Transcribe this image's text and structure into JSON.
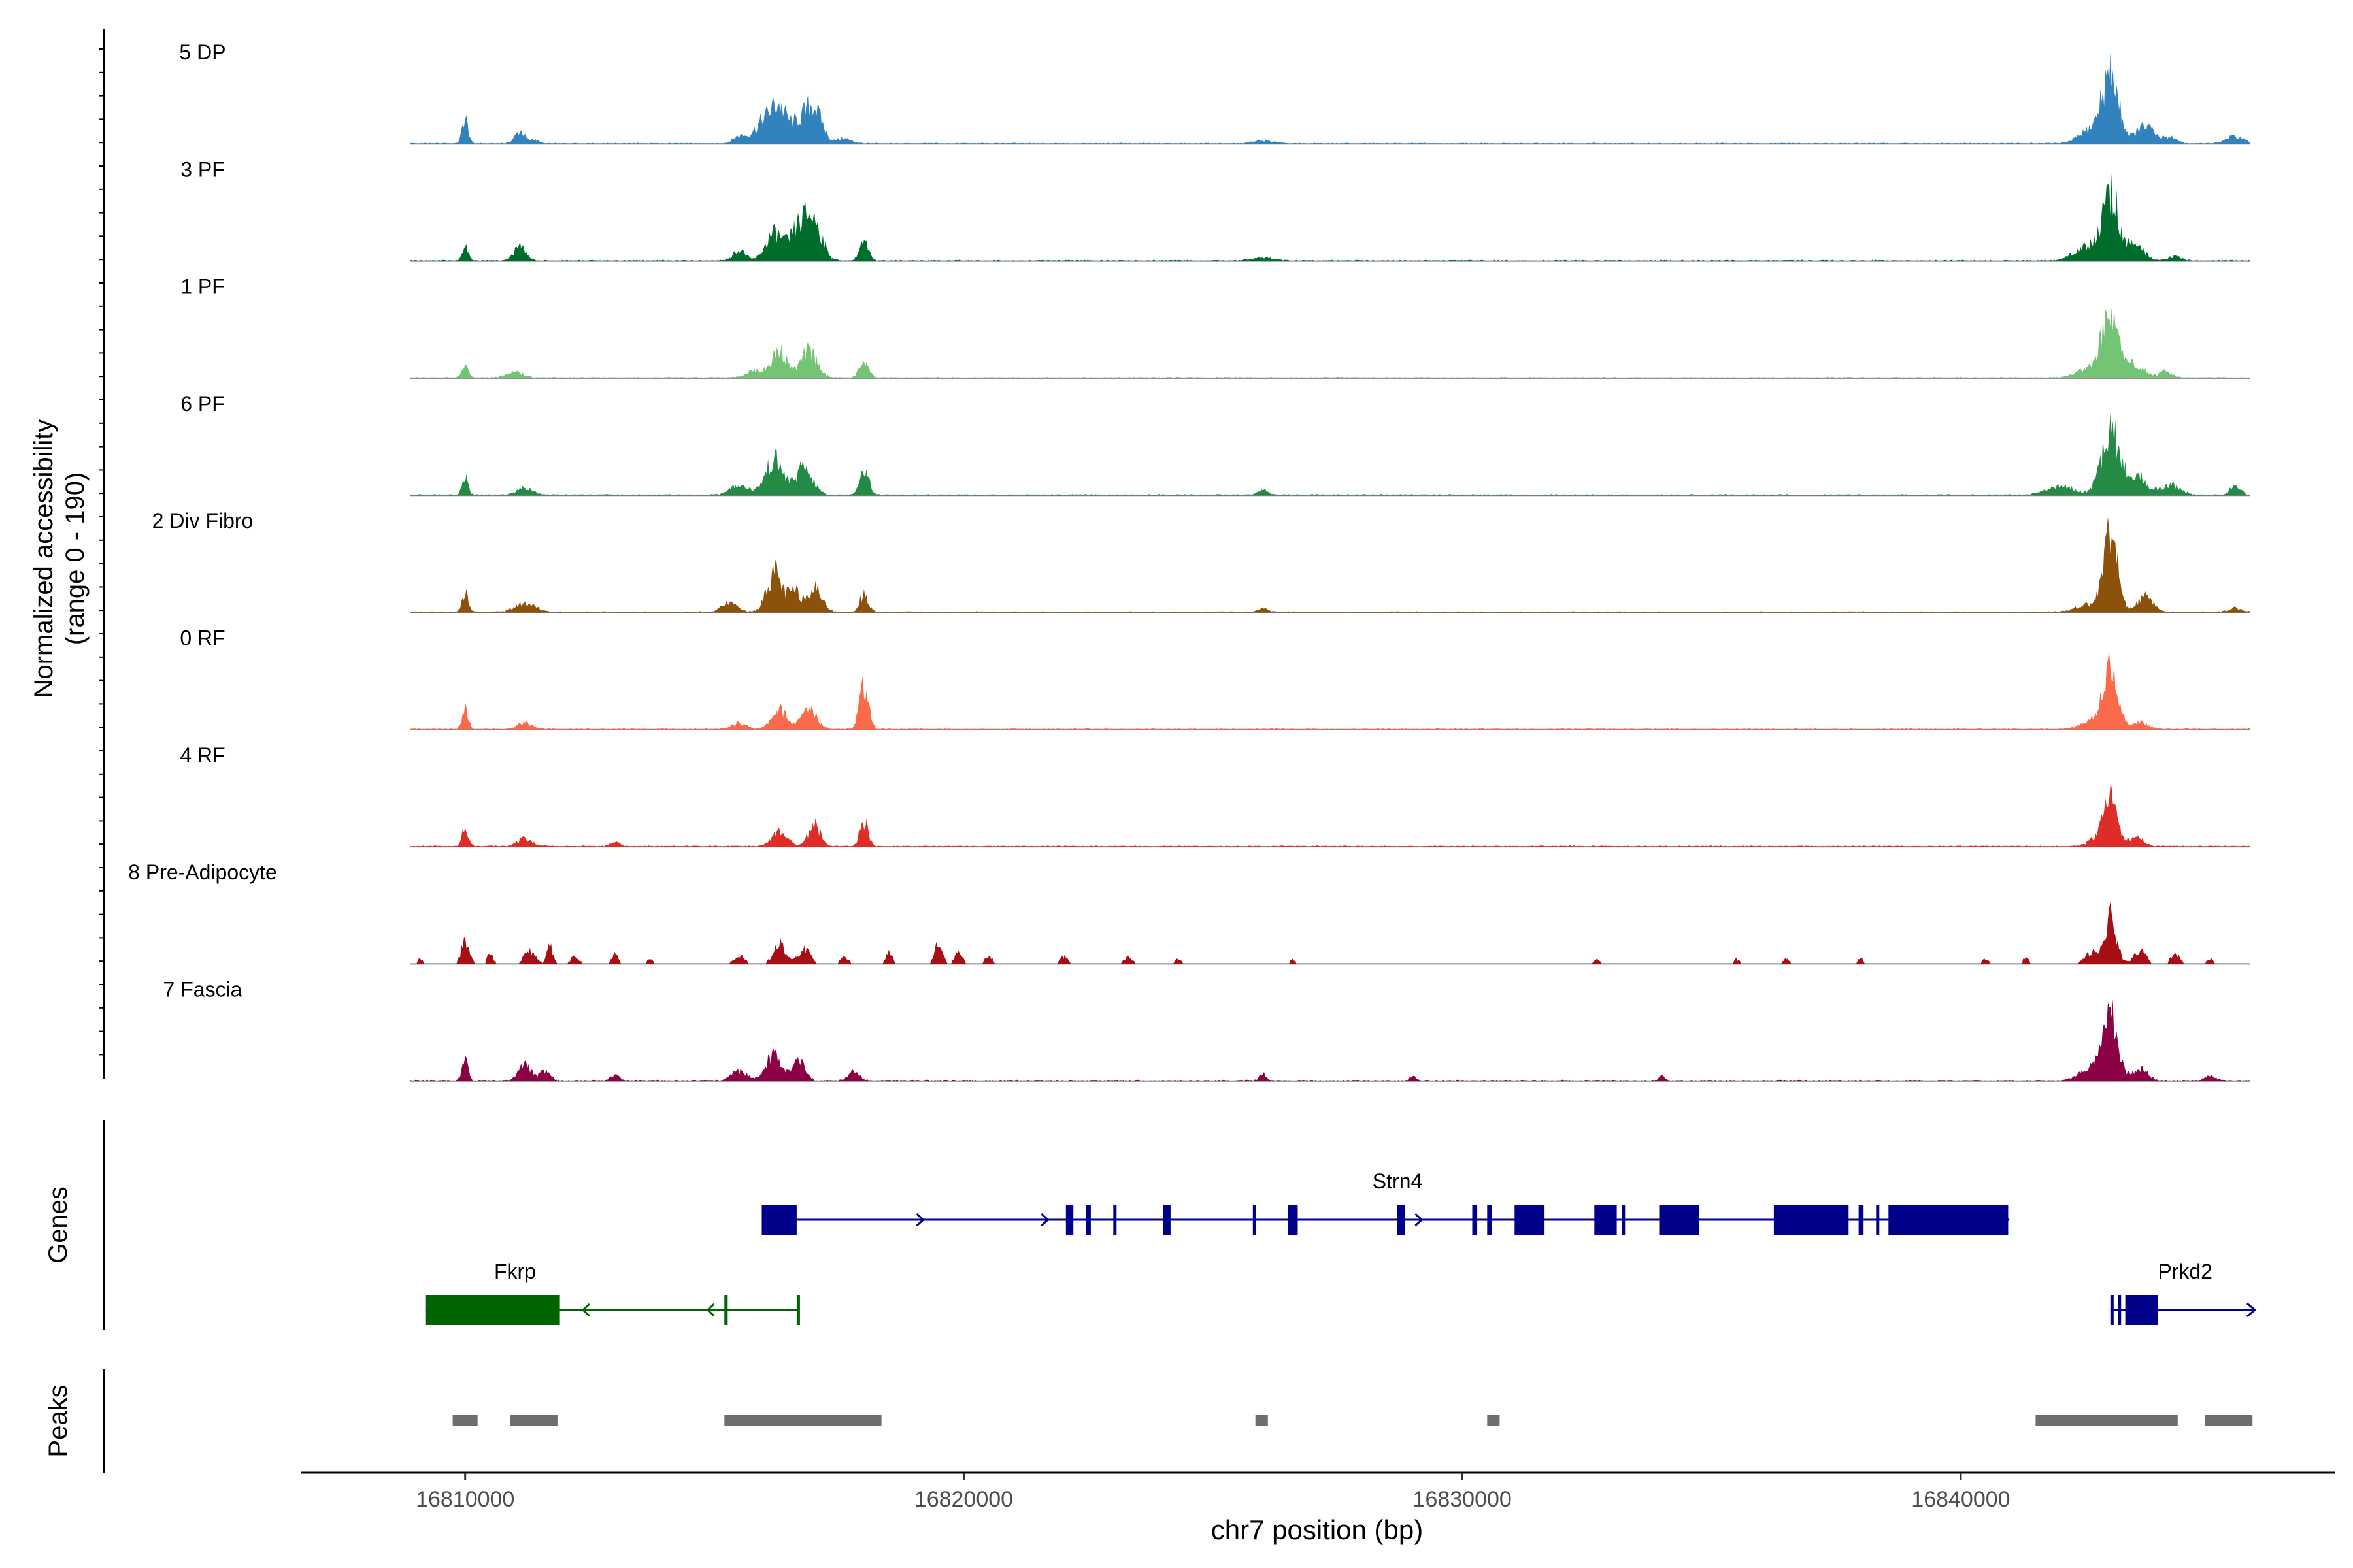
{
  "chart_data": {
    "type": "area",
    "title": "",
    "xlabel": "chr7 position (bp)",
    "ylabel": "Normalized accessibility\n(range 0 - 190)",
    "ylabel_line1": "Normalized accessibility",
    "ylabel_line2": "(range 0 - 190)",
    "y_range": [
      0,
      190
    ],
    "xlim": [
      16806700,
      16847500
    ],
    "x_ticks": [
      16810000,
      16820000,
      16830000,
      16840000
    ],
    "x_tick_labels": [
      "16810000",
      "16820000",
      "16830000",
      "16840000"
    ],
    "track_x_range": [
      16808900,
      16845800
    ],
    "genes_label": "Genes",
    "peaks_label": "Peaks",
    "tracks": [
      {
        "name": "5 DP",
        "color": "#3182bd",
        "peaks": [
          [
            16810000,
            50,
            60
          ],
          [
            16811100,
            25,
            100
          ],
          [
            16811400,
            8,
            80
          ],
          [
            16815500,
            15,
            120
          ],
          [
            16816000,
            45,
            200
          ],
          [
            16816300,
            62,
            150
          ],
          [
            16816700,
            38,
            180
          ],
          [
            16817000,
            68,
            160
          ],
          [
            16817600,
            10,
            140
          ],
          [
            16826000,
            6,
            200
          ],
          [
            16842600,
            25,
            240
          ],
          [
            16843000,
            135,
            170
          ],
          [
            16843700,
            35,
            180
          ],
          [
            16844200,
            14,
            120
          ],
          [
            16845500,
            14,
            170
          ]
        ]
      },
      {
        "name": "3 PF",
        "color": "#006d2c",
        "peaks": [
          [
            16810000,
            28,
            60
          ],
          [
            16811100,
            28,
            120
          ],
          [
            16815500,
            22,
            120
          ],
          [
            16816200,
            55,
            170
          ],
          [
            16816700,
            65,
            170
          ],
          [
            16817000,
            75,
            160
          ],
          [
            16818000,
            35,
            90
          ],
          [
            16826000,
            6,
            200
          ],
          [
            16842500,
            28,
            240
          ],
          [
            16843000,
            140,
            160
          ],
          [
            16843500,
            30,
            180
          ],
          [
            16844300,
            10,
            120
          ]
        ]
      },
      {
        "name": "1 PF",
        "color": "#74c476",
        "peaks": [
          [
            16810000,
            32,
            60
          ],
          [
            16811000,
            12,
            150
          ],
          [
            16815800,
            14,
            160
          ],
          [
            16816300,
            55,
            160
          ],
          [
            16816900,
            55,
            160
          ],
          [
            16818000,
            35,
            90
          ],
          [
            16842600,
            22,
            240
          ],
          [
            16843000,
            145,
            150
          ],
          [
            16843500,
            28,
            180
          ],
          [
            16844100,
            12,
            120
          ]
        ]
      },
      {
        "name": "6 PF",
        "color": "#238b45",
        "peaks": [
          [
            16810000,
            35,
            60
          ],
          [
            16811200,
            15,
            150
          ],
          [
            16815500,
            20,
            180
          ],
          [
            16816200,
            70,
            180
          ],
          [
            16816800,
            55,
            170
          ],
          [
            16818000,
            55,
            90
          ],
          [
            16826000,
            10,
            100
          ],
          [
            16842000,
            18,
            280
          ],
          [
            16843000,
            130,
            180
          ],
          [
            16843500,
            40,
            200
          ],
          [
            16844200,
            20,
            200
          ],
          [
            16845500,
            20,
            100
          ]
        ]
      },
      {
        "name": "2 Div Fibro",
        "color": "#8c510a",
        "peaks": [
          [
            16810000,
            40,
            60
          ],
          [
            16811200,
            18,
            200
          ],
          [
            16815300,
            18,
            150
          ],
          [
            16816200,
            80,
            150
          ],
          [
            16816600,
            40,
            120
          ],
          [
            16817000,
            50,
            150
          ],
          [
            16818000,
            40,
            80
          ],
          [
            16826000,
            8,
            100
          ],
          [
            16842500,
            15,
            200
          ],
          [
            16843000,
            165,
            140
          ],
          [
            16843700,
            35,
            150
          ],
          [
            16845500,
            8,
            120
          ]
        ]
      },
      {
        "name": "0 RF",
        "color": "#fb6a4a",
        "peaks": [
          [
            16810000,
            40,
            60
          ],
          [
            16811200,
            12,
            150
          ],
          [
            16815500,
            12,
            150
          ],
          [
            16816300,
            40,
            150
          ],
          [
            16816900,
            42,
            150
          ],
          [
            16818000,
            90,
            90
          ],
          [
            16842600,
            18,
            200
          ],
          [
            16843000,
            120,
            150
          ],
          [
            16843600,
            15,
            150
          ]
        ]
      },
      {
        "name": "4 RF",
        "color": "#de2d26",
        "peaks": [
          [
            16810000,
            45,
            60
          ],
          [
            16811200,
            15,
            150
          ],
          [
            16813000,
            10,
            80
          ],
          [
            16816300,
            30,
            150
          ],
          [
            16817000,
            45,
            120
          ],
          [
            16818000,
            55,
            80
          ],
          [
            16842700,
            15,
            150
          ],
          [
            16843000,
            100,
            130
          ],
          [
            16843500,
            20,
            150
          ]
        ]
      },
      {
        "name": "8 Pre-Adipocyte",
        "color": "#a50f15",
        "peaks": [
          [
            16809100,
            10,
            60
          ],
          [
            16810000,
            45,
            80
          ],
          [
            16810500,
            20,
            60
          ],
          [
            16811300,
            25,
            120
          ],
          [
            16811700,
            35,
            60
          ],
          [
            16812200,
            15,
            80
          ],
          [
            16813000,
            20,
            60
          ],
          [
            16813700,
            10,
            60
          ],
          [
            16815500,
            20,
            100
          ],
          [
            16816300,
            40,
            120
          ],
          [
            16816800,
            30,
            120
          ],
          [
            16817600,
            15,
            80
          ],
          [
            16818500,
            25,
            60
          ],
          [
            16819500,
            40,
            80
          ],
          [
            16819900,
            25,
            80
          ],
          [
            16820500,
            20,
            60
          ],
          [
            16822000,
            15,
            80
          ],
          [
            16823300,
            15,
            80
          ],
          [
            16824300,
            12,
            60
          ],
          [
            16826600,
            10,
            50
          ],
          [
            16832700,
            8,
            60
          ],
          [
            16835500,
            10,
            60
          ],
          [
            16836500,
            10,
            60
          ],
          [
            16838000,
            12,
            60
          ],
          [
            16840500,
            10,
            80
          ],
          [
            16841300,
            12,
            60
          ],
          [
            16842600,
            25,
            120
          ],
          [
            16843000,
            95,
            120
          ],
          [
            16843600,
            30,
            120
          ],
          [
            16844300,
            25,
            80
          ],
          [
            16845000,
            10,
            60
          ]
        ]
      },
      {
        "name": "7 Fascia",
        "color": "#8c0044",
        "peaks": [
          [
            16810000,
            40,
            60
          ],
          [
            16811200,
            35,
            120
          ],
          [
            16811600,
            20,
            100
          ],
          [
            16813000,
            12,
            80
          ],
          [
            16815500,
            20,
            150
          ],
          [
            16816200,
            55,
            150
          ],
          [
            16816700,
            40,
            120
          ],
          [
            16817800,
            18,
            100
          ],
          [
            16826000,
            15,
            60
          ],
          [
            16829000,
            8,
            60
          ],
          [
            16834000,
            10,
            60
          ],
          [
            16842600,
            25,
            220
          ],
          [
            16843000,
            135,
            150
          ],
          [
            16843600,
            25,
            150
          ],
          [
            16845000,
            10,
            100
          ]
        ]
      }
    ],
    "genes": [
      {
        "name": "Strn4",
        "strand": "+",
        "color": "#00008b",
        "row": 1,
        "label_x": 16828700,
        "start": 16815950,
        "end": 16840950,
        "exons": [
          [
            16815950,
            16816650
          ],
          [
            16822050,
            16822200
          ],
          [
            16822450,
            16822550
          ],
          [
            16823000,
            16823050
          ],
          [
            16824000,
            16824150
          ],
          [
            16825800,
            16825850
          ],
          [
            16826500,
            16826700
          ],
          [
            16828700,
            16828850
          ],
          [
            16830200,
            16830300
          ],
          [
            16830500,
            16830600
          ],
          [
            16831050,
            16831650
          ],
          [
            16832650,
            16833100
          ],
          [
            16833200,
            16833250
          ],
          [
            16833950,
            16834750
          ],
          [
            16836250,
            16837750
          ],
          [
            16837950,
            16838050
          ],
          [
            16838300,
            16838350
          ],
          [
            16838550,
            16840950
          ]
        ]
      },
      {
        "name": "Fkrp",
        "strand": "-",
        "color": "#006400",
        "row": 2,
        "label_x": 16811000,
        "start": 16809200,
        "end": 16816700,
        "exons": [
          [
            16809200,
            16811900
          ],
          [
            16815200,
            16815250
          ],
          [
            16816650,
            16816700
          ]
        ]
      },
      {
        "name": "Prkd2",
        "strand": "+",
        "color": "#00008b",
        "row": 2,
        "label_x": 16844500,
        "start": 16843000,
        "end": 16845900,
        "exons": [
          [
            16843000,
            16843050
          ],
          [
            16843150,
            16843200
          ],
          [
            16843300,
            16843950
          ]
        ]
      }
    ],
    "peak_regions": [
      [
        16809750,
        16810250
      ],
      [
        16810900,
        16811850
      ],
      [
        16815200,
        16818350
      ],
      [
        16825850,
        16826100
      ],
      [
        16830500,
        16830750
      ],
      [
        16841500,
        16844350
      ],
      [
        16844900,
        16845850
      ]
    ]
  }
}
